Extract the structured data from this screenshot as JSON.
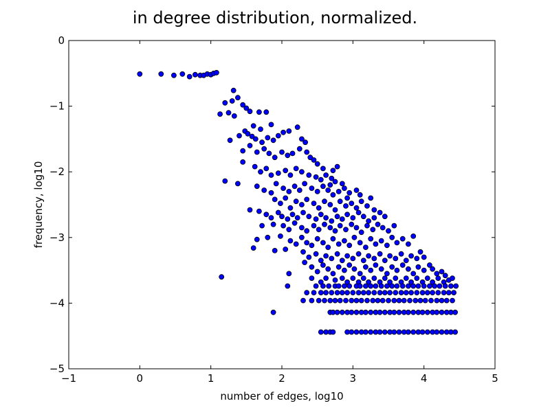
{
  "chart_data": {
    "type": "scatter",
    "title": "in degree distribution, normalized.",
    "xlabel": "number of edges, log10",
    "ylabel": "frequency, log10",
    "xlim": [
      -1,
      5
    ],
    "ylim": [
      -5,
      0
    ],
    "xticks": [
      -1,
      0,
      1,
      2,
      3,
      4,
      5
    ],
    "yticks": [
      -5,
      -4,
      -3,
      -2,
      -1,
      0
    ],
    "xtick_labels": [
      "−1",
      "0",
      "1",
      "2",
      "3",
      "4",
      "5"
    ],
    "ytick_labels": [
      "−5",
      "−4",
      "−3",
      "−2",
      "−1",
      "0"
    ],
    "grid": false,
    "legend": "none",
    "marker_color": "#0000ff",
    "marker_edge": "#000000",
    "points": [
      [
        0.0,
        -0.51
      ],
      [
        0.3,
        -0.51
      ],
      [
        0.48,
        -0.53
      ],
      [
        0.6,
        -0.51
      ],
      [
        0.7,
        -0.55
      ],
      [
        0.78,
        -0.52
      ],
      [
        0.85,
        -0.53
      ],
      [
        0.9,
        -0.53
      ],
      [
        0.95,
        -0.51
      ],
      [
        1.0,
        -0.52
      ],
      [
        1.04,
        -0.5
      ],
      [
        1.08,
        -0.49
      ],
      [
        1.32,
        -0.76
      ],
      [
        1.3,
        -0.92
      ],
      [
        1.38,
        -0.87
      ],
      [
        1.45,
        -0.98
      ],
      [
        1.5,
        -1.03
      ],
      [
        1.13,
        -1.12
      ],
      [
        1.2,
        -0.95
      ],
      [
        1.25,
        -1.1
      ],
      [
        1.33,
        -1.15
      ],
      [
        1.55,
        -1.08
      ],
      [
        1.68,
        -1.09
      ],
      [
        1.78,
        -1.09
      ],
      [
        1.6,
        -1.3
      ],
      [
        1.7,
        -1.35
      ],
      [
        1.85,
        -1.28
      ],
      [
        1.4,
        -1.45
      ],
      [
        1.48,
        -1.38
      ],
      [
        1.52,
        -1.42
      ],
      [
        1.58,
        -1.46
      ],
      [
        1.63,
        -1.5
      ],
      [
        1.72,
        -1.55
      ],
      [
        1.8,
        -1.48
      ],
      [
        1.88,
        -1.52
      ],
      [
        1.95,
        -1.45
      ],
      [
        2.02,
        -1.4
      ],
      [
        2.1,
        -1.38
      ],
      [
        2.22,
        -1.32
      ],
      [
        2.28,
        -1.5
      ],
      [
        2.33,
        -1.55
      ],
      [
        1.27,
        -1.52
      ],
      [
        1.45,
        -1.68
      ],
      [
        1.55,
        -1.6
      ],
      [
        1.65,
        -1.7
      ],
      [
        1.75,
        -1.65
      ],
      [
        1.82,
        -1.72
      ],
      [
        1.9,
        -1.78
      ],
      [
        2.0,
        -1.7
      ],
      [
        2.08,
        -1.75
      ],
      [
        2.15,
        -1.72
      ],
      [
        2.25,
        -1.65
      ],
      [
        2.35,
        -1.7
      ],
      [
        2.4,
        -1.78
      ],
      [
        2.45,
        -1.82
      ],
      [
        2.5,
        -1.88
      ],
      [
        1.45,
        -1.85
      ],
      [
        1.62,
        -1.92
      ],
      [
        1.7,
        -2.0
      ],
      [
        1.78,
        -1.95
      ],
      [
        1.85,
        -2.05
      ],
      [
        1.95,
        -2.02
      ],
      [
        2.05,
        -1.98
      ],
      [
        2.12,
        -2.05
      ],
      [
        2.2,
        -1.95
      ],
      [
        2.28,
        -2.0
      ],
      [
        2.38,
        -2.05
      ],
      [
        2.48,
        -2.08
      ],
      [
        2.55,
        -2.12
      ],
      [
        2.62,
        -2.05
      ],
      [
        2.7,
        -2.1
      ],
      [
        2.75,
        -2.15
      ],
      [
        2.58,
        -1.95
      ],
      [
        2.68,
        -2.2
      ],
      [
        2.72,
        -1.98
      ],
      [
        2.78,
        -1.92
      ],
      [
        1.2,
        -2.14
      ],
      [
        1.38,
        -2.18
      ],
      [
        1.65,
        -2.22
      ],
      [
        1.75,
        -2.28
      ],
      [
        1.85,
        -2.32
      ],
      [
        1.92,
        -2.18
      ],
      [
        2.02,
        -2.25
      ],
      [
        2.1,
        -2.3
      ],
      [
        2.18,
        -2.22
      ],
      [
        2.25,
        -2.28
      ],
      [
        2.32,
        -2.18
      ],
      [
        2.42,
        -2.25
      ],
      [
        2.5,
        -2.3
      ],
      [
        2.58,
        -2.22
      ],
      [
        2.65,
        -2.28
      ],
      [
        2.72,
        -2.35
      ],
      [
        2.8,
        -2.3
      ],
      [
        2.88,
        -2.25
      ],
      [
        2.95,
        -2.32
      ],
      [
        3.05,
        -2.28
      ],
      [
        3.1,
        -2.35
      ],
      [
        2.85,
        -2.18
      ],
      [
        2.92,
        -2.4
      ],
      [
        1.9,
        -2.42
      ],
      [
        1.98,
        -2.48
      ],
      [
        2.05,
        -2.4
      ],
      [
        2.12,
        -2.55
      ],
      [
        2.2,
        -2.45
      ],
      [
        2.28,
        -2.5
      ],
      [
        2.35,
        -2.42
      ],
      [
        2.45,
        -2.48
      ],
      [
        2.52,
        -2.55
      ],
      [
        2.6,
        -2.45
      ],
      [
        2.68,
        -2.5
      ],
      [
        2.75,
        -2.58
      ],
      [
        2.82,
        -2.45
      ],
      [
        2.9,
        -2.52
      ],
      [
        2.98,
        -2.48
      ],
      [
        3.05,
        -2.55
      ],
      [
        3.12,
        -2.45
      ],
      [
        3.2,
        -2.52
      ],
      [
        3.25,
        -2.4
      ],
      [
        3.3,
        -2.58
      ],
      [
        1.55,
        -2.58
      ],
      [
        1.68,
        -2.6
      ],
      [
        1.78,
        -2.65
      ],
      [
        1.95,
        -2.62
      ],
      [
        1.85,
        -2.7
      ],
      [
        2.0,
        -2.68
      ],
      [
        2.08,
        -2.72
      ],
      [
        2.15,
        -2.65
      ],
      [
        2.22,
        -2.7
      ],
      [
        2.3,
        -2.62
      ],
      [
        2.38,
        -2.68
      ],
      [
        2.48,
        -2.72
      ],
      [
        2.55,
        -2.65
      ],
      [
        2.62,
        -2.7
      ],
      [
        2.7,
        -2.75
      ],
      [
        2.78,
        -2.68
      ],
      [
        2.85,
        -2.72
      ],
      [
        2.92,
        -2.65
      ],
      [
        3.0,
        -2.7
      ],
      [
        3.08,
        -2.62
      ],
      [
        3.15,
        -2.68
      ],
      [
        3.22,
        -2.75
      ],
      [
        3.3,
        -2.7
      ],
      [
        3.38,
        -2.62
      ],
      [
        3.45,
        -2.68
      ],
      [
        1.72,
        -2.82
      ],
      [
        1.88,
        -2.8
      ],
      [
        2.02,
        -2.82
      ],
      [
        2.1,
        -2.88
      ],
      [
        2.18,
        -2.78
      ],
      [
        2.28,
        -2.85
      ],
      [
        2.35,
        -2.9
      ],
      [
        2.45,
        -2.82
      ],
      [
        2.52,
        -2.88
      ],
      [
        2.6,
        -2.8
      ],
      [
        2.68,
        -2.85
      ],
      [
        2.75,
        -2.9
      ],
      [
        2.82,
        -2.82
      ],
      [
        2.9,
        -2.88
      ],
      [
        2.98,
        -2.8
      ],
      [
        3.05,
        -2.85
      ],
      [
        3.12,
        -2.92
      ],
      [
        3.2,
        -2.82
      ],
      [
        3.28,
        -2.88
      ],
      [
        3.35,
        -2.8
      ],
      [
        3.42,
        -2.85
      ],
      [
        3.5,
        -2.9
      ],
      [
        3.58,
        -2.82
      ],
      [
        1.6,
        -3.16
      ],
      [
        1.65,
        -3.03
      ],
      [
        1.8,
        -3.0
      ],
      [
        1.9,
        -3.2
      ],
      [
        1.98,
        -2.98
      ],
      [
        2.05,
        -3.18
      ],
      [
        2.12,
        -3.05
      ],
      [
        2.2,
        -3.1
      ],
      [
        2.28,
        -3.0
      ],
      [
        2.35,
        -3.08
      ],
      [
        2.42,
        -3.12
      ],
      [
        2.5,
        -3.02
      ],
      [
        2.58,
        -3.08
      ],
      [
        2.65,
        -3.15
      ],
      [
        2.72,
        -3.02
      ],
      [
        2.8,
        -3.1
      ],
      [
        2.88,
        -3.05
      ],
      [
        2.95,
        -3.12
      ],
      [
        3.02,
        -3.0
      ],
      [
        3.1,
        -3.08
      ],
      [
        3.18,
        -3.15
      ],
      [
        3.25,
        -3.02
      ],
      [
        3.32,
        -3.1
      ],
      [
        3.4,
        -3.05
      ],
      [
        3.48,
        -3.12
      ],
      [
        3.55,
        -3.0
      ],
      [
        3.62,
        -3.08
      ],
      [
        3.7,
        -3.02
      ],
      [
        3.78,
        -3.1
      ],
      [
        3.85,
        -2.98
      ],
      [
        2.3,
        -3.22
      ],
      [
        2.38,
        -3.3
      ],
      [
        2.48,
        -3.25
      ],
      [
        2.55,
        -3.35
      ],
      [
        2.62,
        -3.28
      ],
      [
        2.7,
        -3.32
      ],
      [
        2.78,
        -3.25
      ],
      [
        2.85,
        -3.35
      ],
      [
        2.92,
        -3.28
      ],
      [
        3.0,
        -3.32
      ],
      [
        3.08,
        -3.25
      ],
      [
        3.15,
        -3.35
      ],
      [
        3.22,
        -3.28
      ],
      [
        3.3,
        -3.32
      ],
      [
        3.38,
        -3.25
      ],
      [
        3.45,
        -3.35
      ],
      [
        3.52,
        -3.28
      ],
      [
        3.6,
        -3.32
      ],
      [
        3.68,
        -3.25
      ],
      [
        3.75,
        -3.35
      ],
      [
        3.82,
        -3.28
      ],
      [
        3.9,
        -3.32
      ],
      [
        3.95,
        -3.22
      ],
      [
        4.0,
        -3.3
      ],
      [
        2.1,
        -3.55
      ],
      [
        2.32,
        -3.38
      ],
      [
        2.42,
        -3.45
      ],
      [
        2.5,
        -3.52
      ],
      [
        2.58,
        -3.42
      ],
      [
        2.65,
        -3.48
      ],
      [
        2.72,
        -3.55
      ],
      [
        2.8,
        -3.45
      ],
      [
        2.88,
        -3.5
      ],
      [
        2.95,
        -3.42
      ],
      [
        3.02,
        -3.48
      ],
      [
        3.1,
        -3.55
      ],
      [
        3.18,
        -3.45
      ],
      [
        3.25,
        -3.5
      ],
      [
        3.32,
        -3.42
      ],
      [
        3.4,
        -3.48
      ],
      [
        3.48,
        -3.55
      ],
      [
        3.55,
        -3.45
      ],
      [
        3.62,
        -3.5
      ],
      [
        3.7,
        -3.42
      ],
      [
        3.78,
        -3.48
      ],
      [
        3.85,
        -3.55
      ],
      [
        3.92,
        -3.45
      ],
      [
        4.0,
        -3.5
      ],
      [
        4.08,
        -3.42
      ],
      [
        4.12,
        -3.48
      ],
      [
        4.18,
        -3.55
      ],
      [
        4.25,
        -3.52
      ],
      [
        4.3,
        -3.58
      ],
      [
        1.15,
        -3.6
      ],
      [
        2.42,
        -3.62
      ],
      [
        2.55,
        -3.68
      ],
      [
        2.62,
        -3.62
      ],
      [
        2.75,
        -3.65
      ],
      [
        2.85,
        -3.62
      ],
      [
        2.92,
        -3.68
      ],
      [
        3.0,
        -3.62
      ],
      [
        3.08,
        -3.68
      ],
      [
        3.15,
        -3.62
      ],
      [
        3.22,
        -3.68
      ],
      [
        3.3,
        -3.62
      ],
      [
        3.38,
        -3.68
      ],
      [
        3.45,
        -3.62
      ],
      [
        3.52,
        -3.68
      ],
      [
        3.6,
        -3.62
      ],
      [
        3.68,
        -3.68
      ],
      [
        3.75,
        -3.62
      ],
      [
        3.82,
        -3.68
      ],
      [
        3.9,
        -3.62
      ],
      [
        3.98,
        -3.68
      ],
      [
        4.05,
        -3.62
      ],
      [
        4.12,
        -3.68
      ],
      [
        4.2,
        -3.62
      ],
      [
        4.28,
        -3.68
      ],
      [
        4.35,
        -3.65
      ],
      [
        4.4,
        -3.62
      ],
      [
        2.08,
        -3.74
      ],
      [
        2.48,
        -3.74
      ],
      [
        2.58,
        -3.74
      ],
      [
        2.66,
        -3.74
      ],
      [
        2.75,
        -3.74
      ],
      [
        2.8,
        -3.74
      ],
      [
        2.88,
        -3.74
      ],
      [
        2.95,
        -3.74
      ],
      [
        3.05,
        -3.74
      ],
      [
        3.1,
        -3.74
      ],
      [
        3.18,
        -3.74
      ],
      [
        3.25,
        -3.74
      ],
      [
        3.32,
        -3.74
      ],
      [
        3.4,
        -3.74
      ],
      [
        3.48,
        -3.74
      ],
      [
        3.55,
        -3.74
      ],
      [
        3.62,
        -3.74
      ],
      [
        3.7,
        -3.74
      ],
      [
        3.78,
        -3.74
      ],
      [
        3.85,
        -3.74
      ],
      [
        3.92,
        -3.74
      ],
      [
        4.0,
        -3.74
      ],
      [
        4.08,
        -3.74
      ],
      [
        4.15,
        -3.74
      ],
      [
        4.22,
        -3.74
      ],
      [
        4.3,
        -3.74
      ],
      [
        4.38,
        -3.74
      ],
      [
        4.45,
        -3.74
      ],
      [
        2.35,
        -3.84
      ],
      [
        2.45,
        -3.84
      ],
      [
        2.55,
        -3.84
      ],
      [
        2.62,
        -3.84
      ],
      [
        2.7,
        -3.84
      ],
      [
        2.78,
        -3.84
      ],
      [
        2.85,
        -3.84
      ],
      [
        2.92,
        -3.84
      ],
      [
        3.0,
        -3.84
      ],
      [
        3.08,
        -3.84
      ],
      [
        3.15,
        -3.84
      ],
      [
        3.22,
        -3.84
      ],
      [
        3.3,
        -3.84
      ],
      [
        3.38,
        -3.84
      ],
      [
        3.45,
        -3.84
      ],
      [
        3.52,
        -3.84
      ],
      [
        3.6,
        -3.84
      ],
      [
        3.68,
        -3.84
      ],
      [
        3.75,
        -3.84
      ],
      [
        3.82,
        -3.84
      ],
      [
        3.9,
        -3.84
      ],
      [
        3.98,
        -3.84
      ],
      [
        4.05,
        -3.84
      ],
      [
        4.12,
        -3.84
      ],
      [
        4.2,
        -3.84
      ],
      [
        4.28,
        -3.84
      ],
      [
        4.35,
        -3.84
      ],
      [
        4.42,
        -3.84
      ],
      [
        2.3,
        -3.96
      ],
      [
        2.42,
        -3.96
      ],
      [
        2.52,
        -3.96
      ],
      [
        2.6,
        -3.96
      ],
      [
        2.68,
        -3.96
      ],
      [
        2.75,
        -3.96
      ],
      [
        2.82,
        -3.96
      ],
      [
        2.9,
        -3.96
      ],
      [
        2.98,
        -3.96
      ],
      [
        3.05,
        -3.96
      ],
      [
        3.12,
        -3.96
      ],
      [
        3.2,
        -3.96
      ],
      [
        3.28,
        -3.96
      ],
      [
        3.35,
        -3.96
      ],
      [
        3.42,
        -3.96
      ],
      [
        3.5,
        -3.96
      ],
      [
        3.58,
        -3.96
      ],
      [
        3.65,
        -3.96
      ],
      [
        3.72,
        -3.96
      ],
      [
        3.8,
        -3.96
      ],
      [
        3.88,
        -3.96
      ],
      [
        3.95,
        -3.96
      ],
      [
        4.02,
        -3.96
      ],
      [
        4.1,
        -3.96
      ],
      [
        4.18,
        -3.96
      ],
      [
        4.25,
        -3.96
      ],
      [
        4.32,
        -3.96
      ],
      [
        4.4,
        -3.96
      ],
      [
        1.88,
        -4.14
      ],
      [
        2.68,
        -4.14
      ],
      [
        2.72,
        -4.14
      ],
      [
        2.78,
        -4.14
      ],
      [
        2.85,
        -4.14
      ],
      [
        2.92,
        -4.14
      ],
      [
        2.98,
        -4.14
      ],
      [
        3.05,
        -4.14
      ],
      [
        3.12,
        -4.14
      ],
      [
        3.18,
        -4.14
      ],
      [
        3.25,
        -4.14
      ],
      [
        3.32,
        -4.14
      ],
      [
        3.38,
        -4.14
      ],
      [
        3.45,
        -4.14
      ],
      [
        3.52,
        -4.14
      ],
      [
        3.58,
        -4.14
      ],
      [
        3.65,
        -4.14
      ],
      [
        3.72,
        -4.14
      ],
      [
        3.78,
        -4.14
      ],
      [
        3.85,
        -4.14
      ],
      [
        3.92,
        -4.14
      ],
      [
        3.98,
        -4.14
      ],
      [
        4.05,
        -4.14
      ],
      [
        4.12,
        -4.14
      ],
      [
        4.18,
        -4.14
      ],
      [
        4.25,
        -4.14
      ],
      [
        4.32,
        -4.14
      ],
      [
        4.38,
        -4.14
      ],
      [
        4.44,
        -4.14
      ],
      [
        2.55,
        -4.44
      ],
      [
        2.62,
        -4.44
      ],
      [
        2.68,
        -4.44
      ],
      [
        2.72,
        -4.44
      ],
      [
        2.92,
        -4.44
      ],
      [
        2.98,
        -4.44
      ],
      [
        3.05,
        -4.44
      ],
      [
        3.12,
        -4.44
      ],
      [
        3.18,
        -4.44
      ],
      [
        3.25,
        -4.44
      ],
      [
        3.32,
        -4.44
      ],
      [
        3.38,
        -4.44
      ],
      [
        3.45,
        -4.44
      ],
      [
        3.52,
        -4.44
      ],
      [
        3.58,
        -4.44
      ],
      [
        3.65,
        -4.44
      ],
      [
        3.72,
        -4.44
      ],
      [
        3.78,
        -4.44
      ],
      [
        3.85,
        -4.44
      ],
      [
        3.92,
        -4.44
      ],
      [
        3.98,
        -4.44
      ],
      [
        4.05,
        -4.44
      ],
      [
        4.12,
        -4.44
      ],
      [
        4.18,
        -4.44
      ],
      [
        4.25,
        -4.44
      ],
      [
        4.32,
        -4.44
      ],
      [
        4.38,
        -4.44
      ],
      [
        4.44,
        -4.44
      ]
    ]
  }
}
